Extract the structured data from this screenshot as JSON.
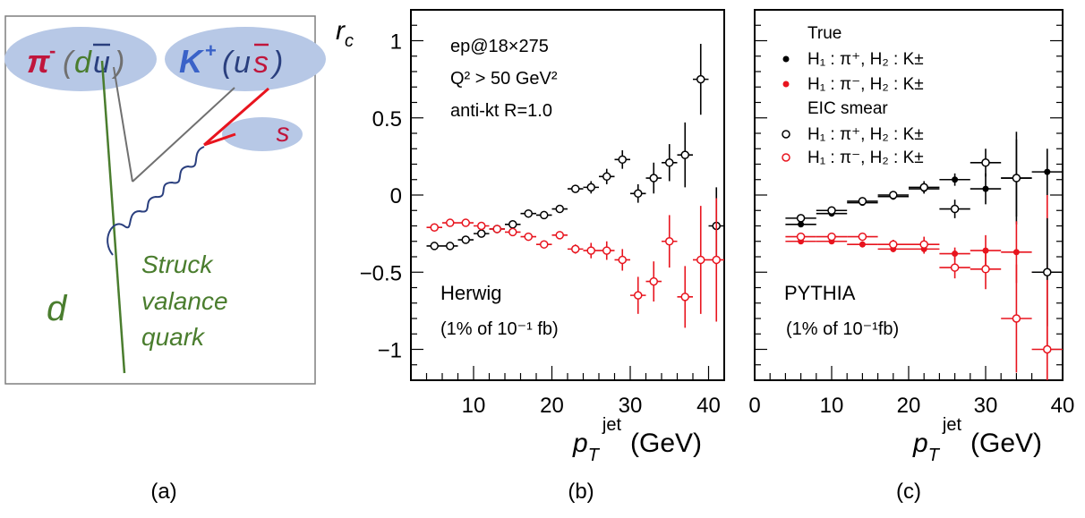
{
  "colors": {
    "black": "#000000",
    "red": "#e8141e",
    "green": "#4a7d2e",
    "blue": "#3a62c8",
    "bubble": "#b7c8e6",
    "crimson": "#c0163c",
    "gray": "#707070",
    "navy": "#2a3f7e"
  },
  "diagram": {
    "pion": {
      "symbol": "π",
      "charge": "-",
      "q1": "d",
      "q2": "u"
    },
    "kaon": {
      "symbol": "K",
      "charge": "+",
      "q1": "u",
      "q2": "s"
    },
    "s_label": "s",
    "d_label": "d",
    "struck_lines": [
      "Struck",
      "valance",
      "quark"
    ],
    "panel_label": "(a)"
  },
  "chart_data": [
    {
      "type": "scatter",
      "panel_label": "(b)",
      "ylabel": "r",
      "ylabel_sub": "c",
      "xlabel": "p",
      "xlabel_sub": "T",
      "xlabel_sup": "jet",
      "xlabel_unit": "(GeV)",
      "xlim": [
        2,
        42
      ],
      "ylim": [
        -1.2,
        1.2
      ],
      "xticks": [
        10,
        20,
        30,
        40
      ],
      "yticks": [
        -1,
        -0.5,
        0,
        0.5,
        1
      ],
      "ytick_labels": [
        "−1",
        "−0.5",
        "0",
        "0.5",
        "1"
      ],
      "info": [
        "ep@18×275",
        "Q² > 50 GeV²",
        "anti-kt R=1.0"
      ],
      "generator": "Herwig",
      "lumi": "(1% of 10⁻¹ fb)",
      "series": [
        {
          "marker": "open",
          "color": "black",
          "xerr": 1.0,
          "points": [
            {
              "x": 5,
              "y": -0.33,
              "e": 0.01
            },
            {
              "x": 7,
              "y": -0.33,
              "e": 0.01
            },
            {
              "x": 9,
              "y": -0.29,
              "e": 0.01
            },
            {
              "x": 11,
              "y": -0.25,
              "e": 0.01
            },
            {
              "x": 13,
              "y": -0.22,
              "e": 0.01
            },
            {
              "x": 15,
              "y": -0.19,
              "e": 0.01
            },
            {
              "x": 17,
              "y": -0.12,
              "e": 0.01
            },
            {
              "x": 19,
              "y": -0.13,
              "e": 0.01
            },
            {
              "x": 21,
              "y": -0.09,
              "e": 0.01
            },
            {
              "x": 23,
              "y": 0.04,
              "e": 0.02
            },
            {
              "x": 25,
              "y": 0.05,
              "e": 0.04
            },
            {
              "x": 27,
              "y": 0.12,
              "e": 0.05
            },
            {
              "x": 29,
              "y": 0.23,
              "e": 0.06
            },
            {
              "x": 31,
              "y": 0.01,
              "e": 0.06
            },
            {
              "x": 33,
              "y": 0.11,
              "e": 0.1
            },
            {
              "x": 35,
              "y": 0.21,
              "e": 0.12
            },
            {
              "x": 37,
              "y": 0.26,
              "e": 0.21
            },
            {
              "x": 39,
              "y": 0.75,
              "e": 0.23
            },
            {
              "x": 41,
              "y": -0.2,
              "e": 0.25
            }
          ]
        },
        {
          "marker": "open",
          "color": "red",
          "xerr": 1.0,
          "points": [
            {
              "x": 5,
              "y": -0.21,
              "e": 0.01
            },
            {
              "x": 7,
              "y": -0.18,
              "e": 0.01
            },
            {
              "x": 9,
              "y": -0.18,
              "e": 0.01
            },
            {
              "x": 11,
              "y": -0.2,
              "e": 0.01
            },
            {
              "x": 13,
              "y": -0.22,
              "e": 0.01
            },
            {
              "x": 15,
              "y": -0.24,
              "e": 0.01
            },
            {
              "x": 17,
              "y": -0.27,
              "e": 0.02
            },
            {
              "x": 19,
              "y": -0.32,
              "e": 0.02
            },
            {
              "x": 21,
              "y": -0.26,
              "e": 0.02
            },
            {
              "x": 23,
              "y": -0.35,
              "e": 0.03
            },
            {
              "x": 25,
              "y": -0.36,
              "e": 0.05
            },
            {
              "x": 27,
              "y": -0.36,
              "e": 0.06
            },
            {
              "x": 29,
              "y": -0.42,
              "e": 0.07
            },
            {
              "x": 31,
              "y": -0.65,
              "e": 0.12
            },
            {
              "x": 33,
              "y": -0.56,
              "e": 0.13
            },
            {
              "x": 35,
              "y": -0.3,
              "e": 0.17
            },
            {
              "x": 37,
              "y": -0.66,
              "e": 0.2
            },
            {
              "x": 39,
              "y": -0.42,
              "e": 0.35
            },
            {
              "x": 41,
              "y": -0.42,
              "e": 0.4
            }
          ]
        }
      ]
    },
    {
      "type": "scatter",
      "panel_label": "(c)",
      "xlabel": "p",
      "xlabel_sub": "T",
      "xlabel_sup": "jet",
      "xlabel_unit": "(GeV)",
      "xlim": [
        0,
        40
      ],
      "ylim": [
        -1.2,
        1.2
      ],
      "xticks": [
        0,
        10,
        20,
        30,
        40
      ],
      "generator": "PYTHIA",
      "lumi": "(1% of 10⁻¹fb)",
      "legend": {
        "title_true": "True",
        "title_smear": "EIC smear",
        "entries": [
          "H₁ : π⁺, H₂ : K±",
          "H₁ : π⁻, H₂ : K±",
          "H₁ : π⁺, H₂ : K±",
          "H₁ : π⁻, H₂ : K±"
        ]
      },
      "series": [
        {
          "marker": "filled",
          "color": "black",
          "xerr": 2.0,
          "points": [
            {
              "x": 6,
              "y": -0.19,
              "e": 0.01
            },
            {
              "x": 10,
              "y": -0.12,
              "e": 0.01
            },
            {
              "x": 14,
              "y": -0.05,
              "e": 0.01
            },
            {
              "x": 18,
              "y": -0.01,
              "e": 0.02
            },
            {
              "x": 22,
              "y": 0.04,
              "e": 0.03
            },
            {
              "x": 26,
              "y": 0.1,
              "e": 0.04
            },
            {
              "x": 30,
              "y": 0.04,
              "e": 0.1
            },
            {
              "x": 34,
              "y": 0.11,
              "e": 0.3
            },
            {
              "x": 38,
              "y": 0.15,
              "e": 0.15
            }
          ]
        },
        {
          "marker": "filled",
          "color": "red",
          "xerr": 2.0,
          "points": [
            {
              "x": 6,
              "y": -0.3,
              "e": 0.01
            },
            {
              "x": 10,
              "y": -0.3,
              "e": 0.01
            },
            {
              "x": 14,
              "y": -0.32,
              "e": 0.01
            },
            {
              "x": 18,
              "y": -0.35,
              "e": 0.02
            },
            {
              "x": 22,
              "y": -0.35,
              "e": 0.03
            },
            {
              "x": 26,
              "y": -0.38,
              "e": 0.04
            },
            {
              "x": 30,
              "y": -0.36,
              "e": 0.1
            },
            {
              "x": 34,
              "y": -0.37,
              "e": 0.2
            },
            {
              "x": 38,
              "y": -0.5,
              "e": 0.5
            }
          ]
        },
        {
          "marker": "open",
          "color": "black",
          "xerr": 2.0,
          "points": [
            {
              "x": 6,
              "y": -0.15,
              "e": 0.01
            },
            {
              "x": 10,
              "y": -0.1,
              "e": 0.01
            },
            {
              "x": 14,
              "y": -0.04,
              "e": 0.01
            },
            {
              "x": 18,
              "y": 0.0,
              "e": 0.02
            },
            {
              "x": 22,
              "y": 0.05,
              "e": 0.04
            },
            {
              "x": 26,
              "y": -0.09,
              "e": 0.06
            },
            {
              "x": 30,
              "y": 0.21,
              "e": 0.09
            },
            {
              "x": 34,
              "y": 0.11,
              "e": 0.25
            },
            {
              "x": 38,
              "y": -0.5,
              "e": 0.35
            }
          ]
        },
        {
          "marker": "open",
          "color": "red",
          "xerr": 2.0,
          "points": [
            {
              "x": 6,
              "y": -0.27,
              "e": 0.01
            },
            {
              "x": 10,
              "y": -0.27,
              "e": 0.02
            },
            {
              "x": 14,
              "y": -0.27,
              "e": 0.02
            },
            {
              "x": 18,
              "y": -0.32,
              "e": 0.03
            },
            {
              "x": 22,
              "y": -0.32,
              "e": 0.05
            },
            {
              "x": 26,
              "y": -0.47,
              "e": 0.07
            },
            {
              "x": 30,
              "y": -0.48,
              "e": 0.13
            },
            {
              "x": 34,
              "y": -0.8,
              "e": 0.35
            },
            {
              "x": 38,
              "y": -1.0,
              "e": 0.45
            }
          ]
        }
      ]
    }
  ]
}
